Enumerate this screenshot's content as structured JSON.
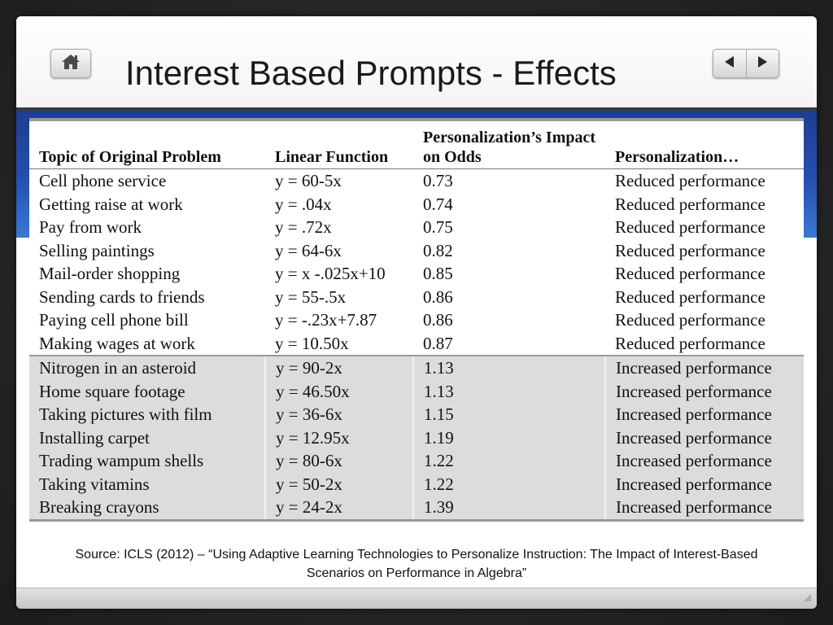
{
  "slide": {
    "title": "Interest Based Prompts - Effects",
    "source": "Source: ICLS (2012) – “Using Adaptive Learning Technologies to Personalize Instruction: The Impact of Interest-Based Scenarios on Performance in Algebra”"
  },
  "nav": {
    "home_icon": "home-icon",
    "prev_icon": "triangle-left-icon",
    "next_icon": "triangle-right-icon"
  },
  "colors": {
    "band": "#274fb0",
    "increased_row": "#dcdcdc",
    "reduced_row": "#ffffff"
  },
  "table": {
    "headers": [
      "Topic of Original Problem",
      "Linear Function",
      "Personalization’s Impact on Odds",
      "Personalization…"
    ],
    "rows": [
      {
        "topic": "Cell phone service",
        "function": "y = 60-5x",
        "odds": "0.73",
        "effect": "Reduced performance"
      },
      {
        "topic": "Getting raise at work",
        "function": "y = .04x",
        "odds": "0.74",
        "effect": "Reduced performance"
      },
      {
        "topic": "Pay from work",
        "function": "y = .72x",
        "odds": "0.75",
        "effect": "Reduced performance"
      },
      {
        "topic": "Selling paintings",
        "function": "y = 64-6x",
        "odds": "0.82",
        "effect": "Reduced performance"
      },
      {
        "topic": "Mail-order shopping",
        "function": "y = x -.025x+10",
        "odds": "0.85",
        "effect": "Reduced performance"
      },
      {
        "topic": "Sending cards to friends",
        "function": "y = 55-.5x",
        "odds": "0.86",
        "effect": "Reduced performance"
      },
      {
        "topic": "Paying cell phone bill",
        "function": "y = -.23x+7.87",
        "odds": "0.86",
        "effect": "Reduced performance"
      },
      {
        "topic": "Making wages at work",
        "function": "y = 10.50x",
        "odds": "0.87",
        "effect": "Reduced performance"
      },
      {
        "topic": "Nitrogen in an asteroid",
        "function": "y = 90-2x",
        "odds": "1.13",
        "effect": "Increased performance"
      },
      {
        "topic": "Home square footage",
        "function": "y = 46.50x",
        "odds": "1.13",
        "effect": "Increased performance"
      },
      {
        "topic": "Taking pictures with film",
        "function": "y = 36-6x",
        "odds": "1.15",
        "effect": "Increased performance"
      },
      {
        "topic": "Installing  carpet",
        "function": "y = 12.95x",
        "odds": "1.19",
        "effect": "Increased performance"
      },
      {
        "topic": "Trading wampum shells",
        "function": "y = 80-6x",
        "odds": "1.22",
        "effect": "Increased performance"
      },
      {
        "topic": "Taking vitamins",
        "function": "y = 50-2x",
        "odds": "1.22",
        "effect": "Increased performance"
      },
      {
        "topic": "Breaking crayons",
        "function": "y = 24-2x",
        "odds": "1.39",
        "effect": "Increased performance"
      }
    ]
  }
}
